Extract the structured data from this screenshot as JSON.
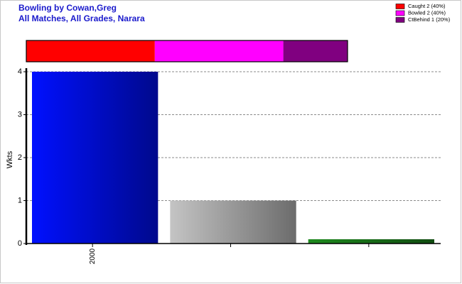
{
  "chart_data": [
    {
      "type": "stacked-bar-horizontal",
      "series": [
        {
          "name": "Caught 2 (40%)",
          "color": "#ff0000",
          "values": [
            40
          ]
        },
        {
          "name": "Bowled 2 (40%)",
          "color": "#ff00ff",
          "values": [
            40
          ]
        },
        {
          "name": "CtBehind 1 (20%)",
          "color": "#800080",
          "values": [
            20
          ]
        }
      ]
    },
    {
      "type": "bar",
      "title": "Bowling by Cowan,Greg",
      "subtitle": "All Matches, All Grades, Narara",
      "ylabel": "Wkts",
      "categories": [
        "2000",
        null,
        null
      ],
      "values": [
        4,
        1,
        0.1
      ],
      "colors": [
        "#0010ff",
        "#c4c4c4",
        "#1e8a1e"
      ],
      "ylim": [
        0,
        4
      ],
      "yticks": [
        0,
        1,
        2,
        3,
        4
      ],
      "grid": true
    }
  ]
}
